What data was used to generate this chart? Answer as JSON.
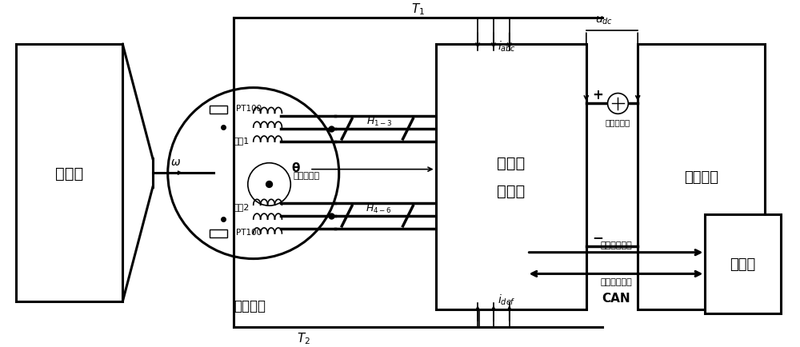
{
  "bg_color": "#ffffff",
  "line_color": "#000000",
  "fig_width": 10.0,
  "fig_height": 4.35,
  "yuandongji_label": "原动机",
  "yongci_label": "永磁电机",
  "zuanzhuan_label": "旋转变压器",
  "raocou1_label": "绕组1",
  "raocou2_label": "绕组2",
  "controller_label1": "二合一",
  "controller_label2": "控制器",
  "resistor_label": "电阻负载",
  "shangweiji_label": "上位机",
  "dianya_sensor": "电压传感器",
  "dianJi_status": "电机状态信息",
  "muxian_label": "母线电压指令",
  "CAN_label": "CAN",
  "PT100": "PT100"
}
